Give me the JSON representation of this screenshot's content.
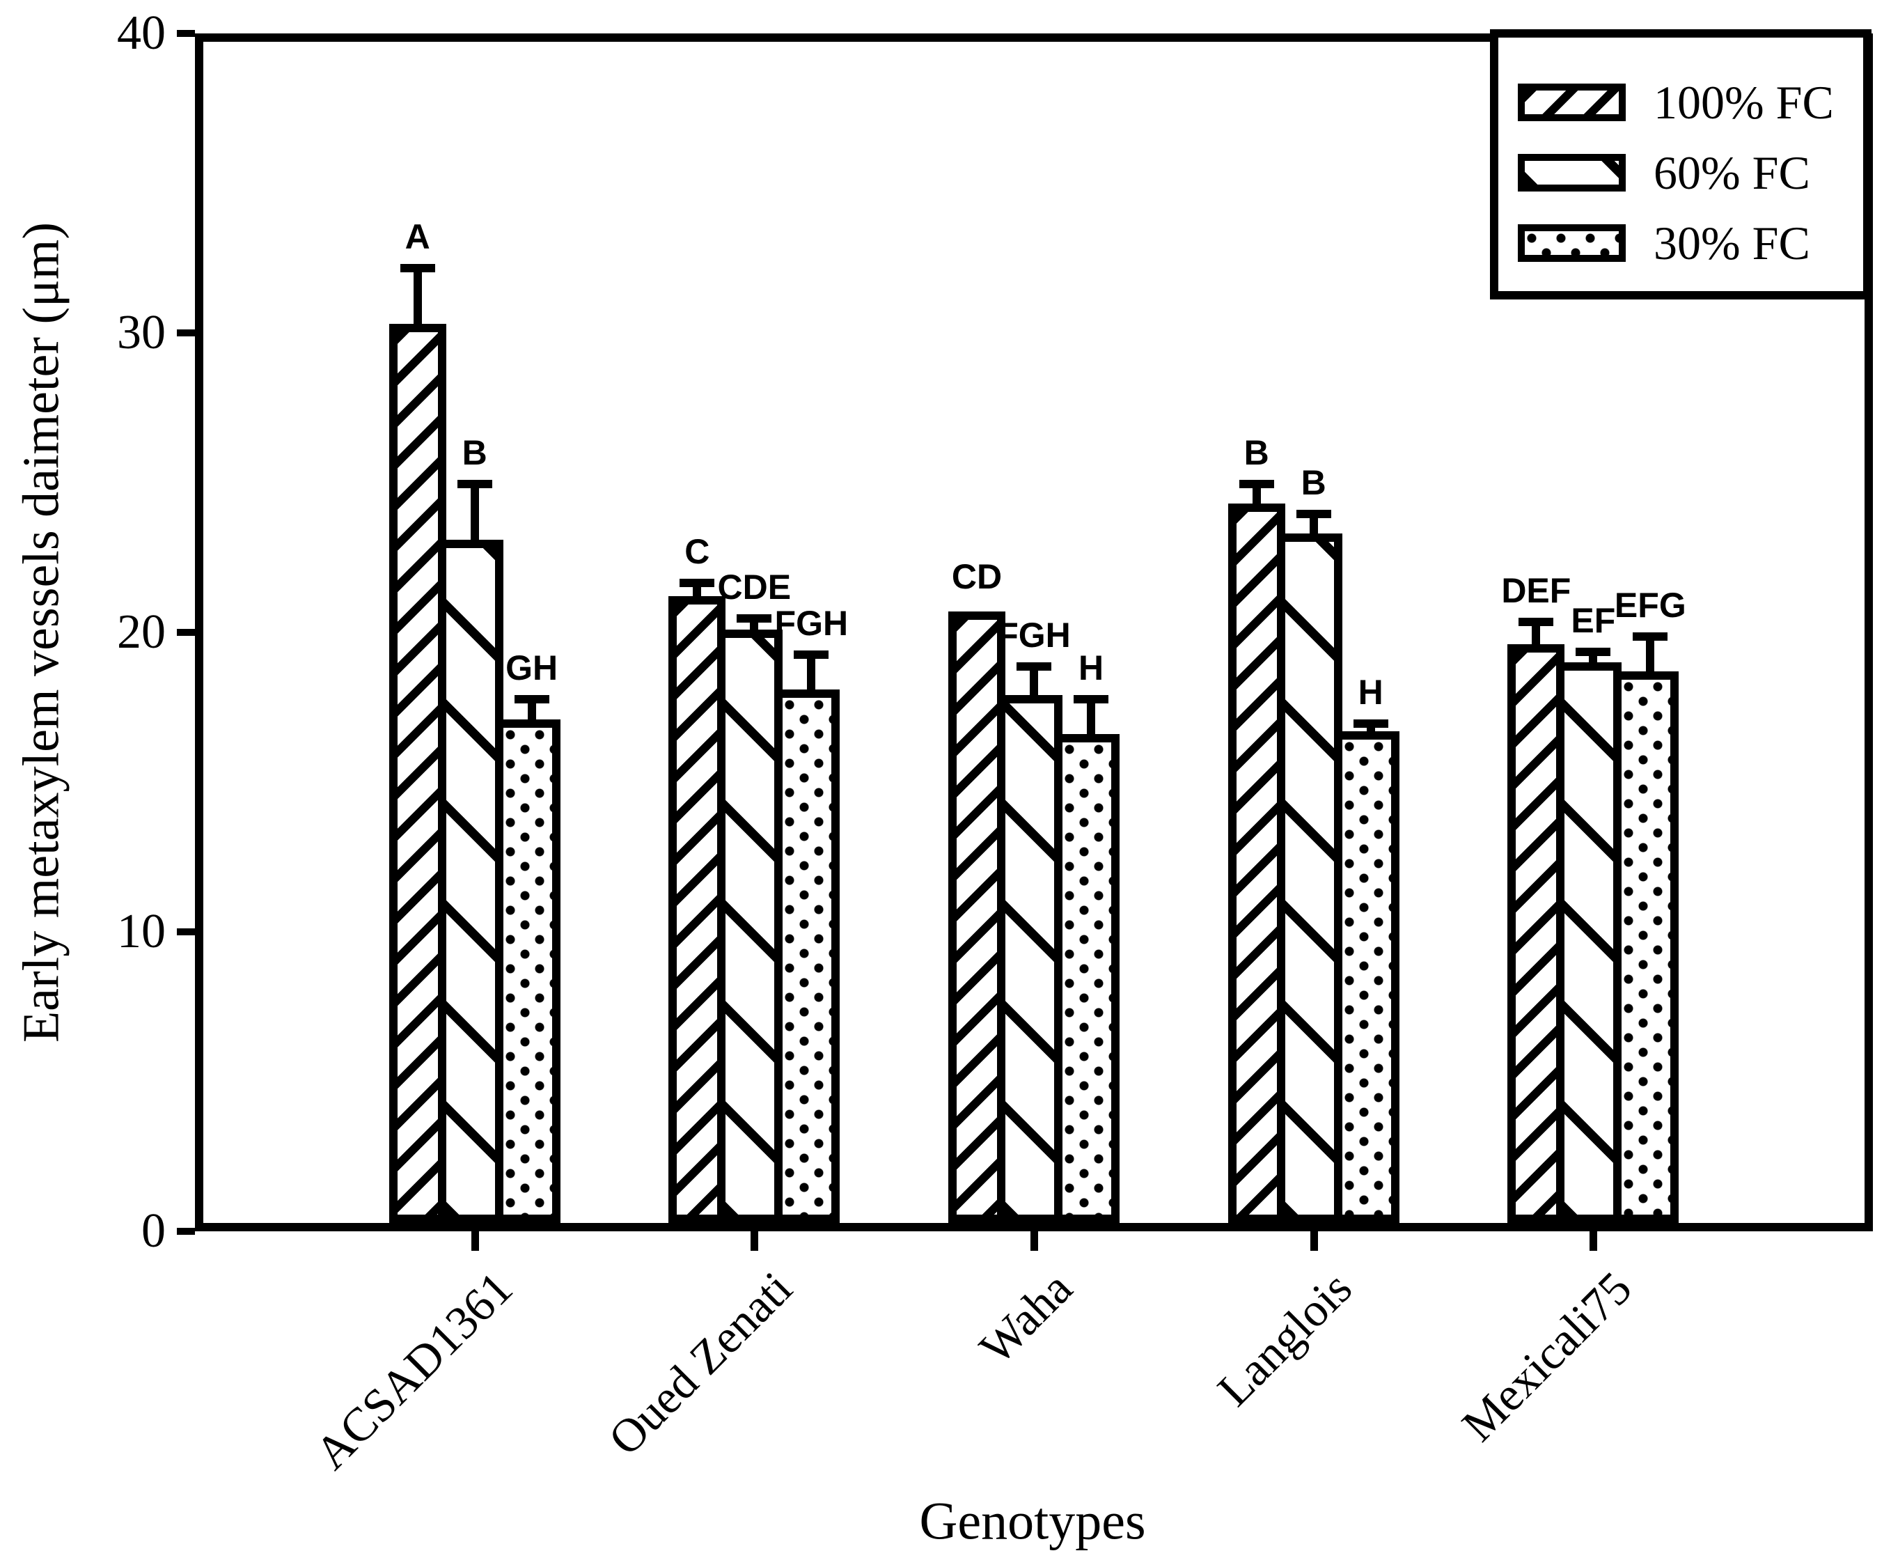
{
  "figure": {
    "xlabel": "Genotypes",
    "ylabel": "Early metaxylem vessels daimeter (μm)"
  },
  "chart_data": {
    "type": "bar",
    "title": "",
    "xlabel": "Genotypes",
    "ylabel": "Early metaxylem vessels daimeter (μm)",
    "ylim": [
      0,
      40
    ],
    "yticks": [
      0,
      10,
      20,
      30,
      40
    ],
    "grid": false,
    "legend_position": "top-right",
    "categories": [
      "ACSAD1361",
      "Oued Zenati",
      "Waha",
      "Langlois",
      "Mexicali75"
    ],
    "series": [
      {
        "name": "100% FC",
        "pattern": "forward-diagonal-hatch",
        "values": [
          30.3,
          21.2,
          20.7,
          24.3,
          19.6
        ],
        "errors": [
          2.0,
          0.6,
          0,
          0.8,
          0.9
        ],
        "letters": [
          "A",
          "C",
          "CD",
          "B",
          "DEF"
        ]
      },
      {
        "name": "60% FC",
        "pattern": "backward-diagonal-hatch",
        "values": [
          23.1,
          20.1,
          17.9,
          23.3,
          19.0
        ],
        "errors": [
          2.0,
          0.5,
          1.1,
          0.8,
          0.5
        ],
        "letters": [
          "B",
          "CDE",
          "FGH",
          "B",
          "EF"
        ]
      },
      {
        "name": "30% FC",
        "pattern": "dots",
        "values": [
          17.1,
          18.1,
          16.6,
          16.7,
          18.7
        ],
        "errors": [
          0.8,
          1.3,
          1.3,
          0.4,
          1.3
        ],
        "letters": [
          "GH",
          "FGH",
          "H",
          "H",
          "EFG"
        ]
      }
    ],
    "colors": {
      "foreground": "#000000",
      "background": "#ffffff"
    }
  }
}
